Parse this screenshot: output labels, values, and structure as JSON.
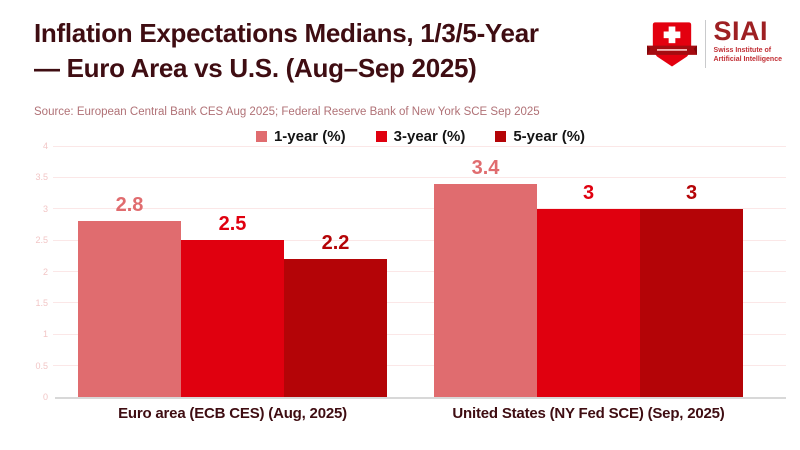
{
  "header": {
    "title_line1": "Inflation Expectations Medians, 1/3/5-Year",
    "title_line2": "— Euro Area vs U.S. (Aug–Sep 2025)",
    "source": "Source: European Central Bank CES Aug 2025; Federal Reserve Bank of New York SCE Sep 2025",
    "logo": {
      "brand": "SIAI",
      "tagline_line1": "Swiss Institute of",
      "tagline_line2": "Artificial Intelligence",
      "shield_icon": "swiss-shield-icon"
    }
  },
  "chart_data": {
    "type": "bar",
    "title": "Inflation Expectations Medians, 1/3/5-Year — Euro Area vs U.S. (Aug–Sep 2025)",
    "categories": [
      "Euro area (ECB CES) (Aug, 2025)",
      "United States (NY Fed SCE) (Sep, 2025)"
    ],
    "series": [
      {
        "name": "1-year (%)",
        "color": "#E06C6F",
        "values": [
          2.8,
          3.4
        ]
      },
      {
        "name": "3-year (%)",
        "color": "#E0000F",
        "values": [
          2.5,
          3
        ]
      },
      {
        "name": "5-year (%)",
        "color": "#B40407",
        "values": [
          2.2,
          3
        ]
      }
    ],
    "ylim": [
      0,
      4
    ],
    "ytick_interval": 0.5,
    "yticks": [
      "0",
      "0.5",
      "1",
      "1.5",
      "2",
      "2.5",
      "3",
      "3.5",
      "4"
    ],
    "grid": true,
    "legend_position": "top",
    "value_labels_shown": true
  },
  "colors": {
    "title_text": "#3F0D12",
    "source_text": "#B07176",
    "series_1yr": "#E06C6F",
    "series_3yr": "#E0000F",
    "series_5yr": "#B40407",
    "gridline": "#FBE7E7",
    "axis_line": "#D8D8D8",
    "ytick_text": "#F2C6C6",
    "logo_shield": "#E3000F",
    "logo_ribbon": "#A50B10",
    "logo_brand_text": "#9E2023"
  }
}
